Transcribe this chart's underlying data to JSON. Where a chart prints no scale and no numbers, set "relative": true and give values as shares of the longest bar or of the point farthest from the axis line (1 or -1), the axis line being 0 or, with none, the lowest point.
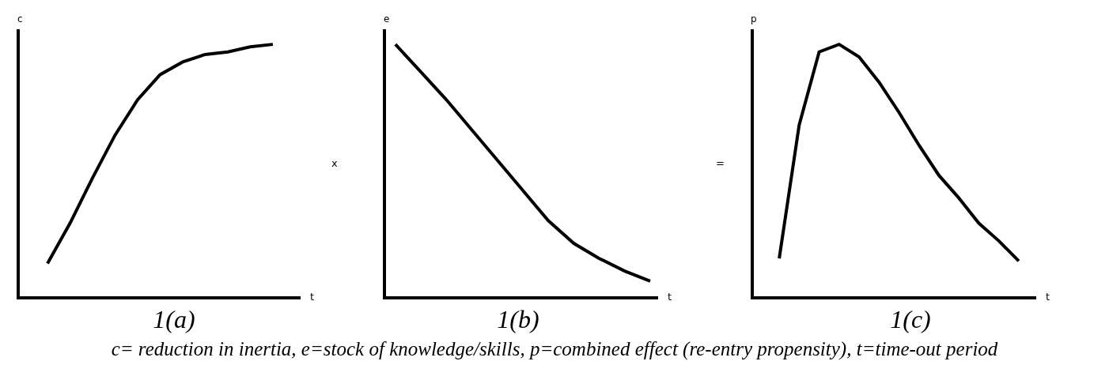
{
  "chart_data": [
    {
      "type": "line",
      "relative": true,
      "title": "1(a)",
      "xlabel": "t",
      "ylabel": "c",
      "categories": [
        null,
        null,
        null,
        null,
        null,
        null,
        null,
        null,
        null,
        null,
        null
      ],
      "series": [
        {
          "color": "#000000",
          "values": [
            0.13,
            0.29,
            0.47,
            0.64,
            0.78,
            0.88,
            0.93,
            0.96,
            0.97,
            0.99,
            1
          ]
        }
      ],
      "grid": false,
      "marker": "none",
      "line_style": "solid",
      "annotations": [
        "c= reduction in inertia, e=stock of knowledge/skills, p=combined effect (re-entry propensity), t=time-out period"
      ]
    },
    {
      "type": "line",
      "relative": true,
      "title": "1(b)",
      "xlabel": "t",
      "ylabel": "e",
      "categories": [
        null,
        null,
        null,
        null,
        null,
        null,
        null,
        null,
        null,
        null,
        null
      ],
      "series": [
        {
          "color": "#000000",
          "values": [
            1,
            0.89,
            0.78,
            0.66,
            0.54,
            0.42,
            0.3,
            0.21,
            0.15,
            0.1,
            0.06
          ]
        }
      ],
      "grid": false,
      "marker": "none",
      "line_style": "solid",
      "annotations": [
        "x"
      ]
    },
    {
      "type": "line",
      "relative": true,
      "title": "1(c)",
      "xlabel": "t",
      "ylabel": "p",
      "categories": [
        null,
        null,
        null,
        null,
        null,
        null,
        null,
        null,
        null,
        null,
        null,
        null,
        null
      ],
      "series": [
        {
          "color": "#000000",
          "values": [
            0.15,
            0.68,
            0.97,
            1,
            0.95,
            0.85,
            0.73,
            0.6,
            0.48,
            0.39,
            0.29,
            0.22,
            0.14
          ]
        }
      ],
      "grid": false,
      "marker": "none",
      "line_style": "solid",
      "annotations": [
        "="
      ]
    }
  ]
}
